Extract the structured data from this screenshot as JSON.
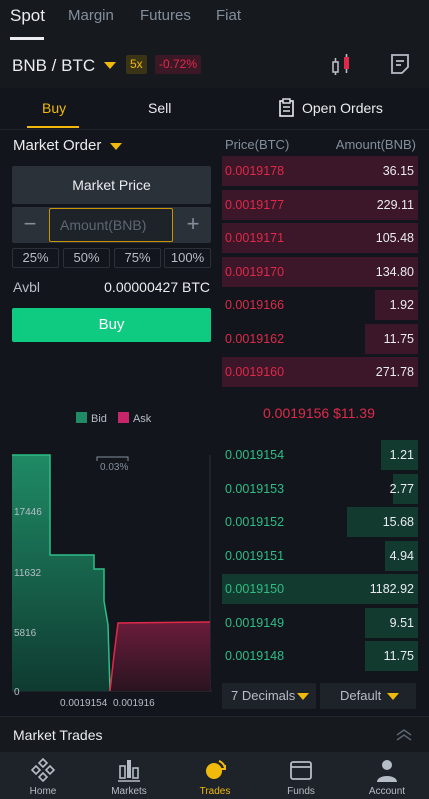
{
  "top_tabs": [
    "Spot",
    "Margin",
    "Futures",
    "Fiat"
  ],
  "pair": {
    "name": "BNB / BTC",
    "leverage": "5x",
    "change": "-0.72%"
  },
  "trade_tabs": {
    "buy": "Buy",
    "sell": "Sell",
    "open_orders": "Open Orders"
  },
  "order_form": {
    "order_type": "Market Order",
    "price_field": "Market Price",
    "amount_placeholder": "Amount(BNB)",
    "minus": "−",
    "plus": "+",
    "percents": [
      "25%",
      "50%",
      "75%",
      "100%"
    ],
    "avbl_label": "Avbl",
    "avbl_value": "0.00000427 BTC",
    "buy_button": "Buy"
  },
  "depth": {
    "legend_bid": "Bid",
    "legend_ask": "Ask",
    "spread_pct": "0.03%",
    "y_ticks": [
      "17446",
      "11632",
      "5816",
      "0"
    ],
    "x_left": "0.0019154",
    "x_right": "0.001916",
    "bid_color": "#1f8a65",
    "ask_color": "#c8266b"
  },
  "order_book": {
    "price_header": "Price(BTC)",
    "amount_header": "Amount(BNB)",
    "asks": [
      {
        "price": "0.0019178",
        "amount": "36.15",
        "depth": 1.0
      },
      {
        "price": "0.0019177",
        "amount": "229.11",
        "depth": 1.0
      },
      {
        "price": "0.0019171",
        "amount": "105.48",
        "depth": 1.0
      },
      {
        "price": "0.0019170",
        "amount": "134.80",
        "depth": 1.0
      },
      {
        "price": "0.0019166",
        "amount": "1.92",
        "depth": 0.22
      },
      {
        "price": "0.0019162",
        "amount": "11.75",
        "depth": 0.27
      },
      {
        "price": "0.0019160",
        "amount": "271.78",
        "depth": 1.0
      }
    ],
    "last_price": "0.0019156",
    "last_price_usd": "$11.39",
    "bids": [
      {
        "price": "0.0019154",
        "amount": "1.21",
        "depth": 0.19
      },
      {
        "price": "0.0019153",
        "amount": "2.77",
        "depth": 0.13
      },
      {
        "price": "0.0019152",
        "amount": "15.68",
        "depth": 0.36
      },
      {
        "price": "0.0019151",
        "amount": "4.94",
        "depth": 0.17
      },
      {
        "price": "0.0019150",
        "amount": "1182.92",
        "depth": 1.0
      },
      {
        "price": "0.0019149",
        "amount": "9.51",
        "depth": 0.27
      },
      {
        "price": "0.0019148",
        "amount": "11.75",
        "depth": 0.27
      }
    ],
    "decimals": "7 Decimals",
    "view": "Default"
  },
  "market_trades": "Market Trades",
  "bottom_nav": [
    "Home",
    "Markets",
    "Trades",
    "Funds",
    "Account"
  ],
  "colors": {
    "accent": "#f0b90b",
    "buy": "#0ecb81",
    "sell": "#e0294a",
    "bg": "#12161c"
  }
}
